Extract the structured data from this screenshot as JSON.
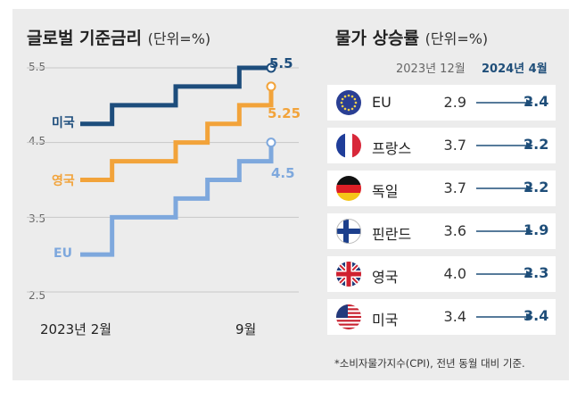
{
  "colors": {
    "us": "#1d4d7c",
    "uk": "#f2a33a",
    "eu": "#7ea8dd",
    "grid": "#c8c8c8",
    "accent": "#1f4e79"
  },
  "chart_data": [
    {
      "type": "line",
      "step": true,
      "title": "글로벌 기준금리",
      "unit": "(단위=%)",
      "y_ticks": [
        "5.5",
        "4.5",
        "3.5",
        "2.5"
      ],
      "ylim": [
        2.5,
        5.5
      ],
      "x_labels": {
        "start": "2023년 2월",
        "end": "9월"
      },
      "series": [
        {
          "name": "미국",
          "key": "us",
          "end_label": "5.5",
          "points": [
            [
              0,
              4.75
            ],
            [
              1,
              5.0
            ],
            [
              3,
              5.25
            ],
            [
              5,
              5.5
            ],
            [
              6,
              5.5
            ]
          ]
        },
        {
          "name": "영국",
          "key": "uk",
          "end_label": "5.25",
          "points": [
            [
              0,
              4.0
            ],
            [
              1,
              4.25
            ],
            [
              3,
              4.5
            ],
            [
              4,
              4.75
            ],
            [
              5,
              5.0
            ],
            [
              6,
              5.25
            ]
          ]
        },
        {
          "name": "EU",
          "key": "eu",
          "end_label": "4.5",
          "points": [
            [
              0,
              3.0
            ],
            [
              1,
              3.5
            ],
            [
              3,
              3.75
            ],
            [
              4,
              4.0
            ],
            [
              5,
              4.25
            ],
            [
              6,
              4.5
            ]
          ]
        }
      ]
    },
    {
      "type": "table",
      "title": "물가 상승률",
      "unit": "(단위=%)",
      "columns": [
        "2023년 12월",
        "2024년 4월"
      ],
      "rows": [
        {
          "country": "EU",
          "flag": "eu-flag-icon",
          "dec2023": "2.9",
          "apr2024": "2.4"
        },
        {
          "country": "프랑스",
          "flag": "france-flag-icon",
          "dec2023": "3.7",
          "apr2024": "2.2"
        },
        {
          "country": "독일",
          "flag": "germany-flag-icon",
          "dec2023": "3.7",
          "apr2024": "2.2"
        },
        {
          "country": "핀란드",
          "flag": "finland-flag-icon",
          "dec2023": "3.6",
          "apr2024": "1.9"
        },
        {
          "country": "영국",
          "flag": "uk-flag-icon",
          "dec2023": "4.0",
          "apr2024": "2.3"
        },
        {
          "country": "미국",
          "flag": "us-flag-icon",
          "dec2023": "3.4",
          "apr2024": "3.4"
        }
      ],
      "footnote": "*소비자물가지수(CPI), 전년 동월 대비 기준."
    }
  ]
}
